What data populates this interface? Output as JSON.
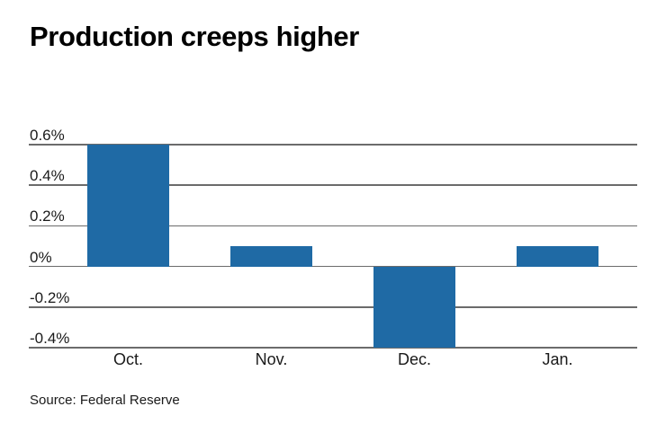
{
  "colors": {
    "bar": "#1f6aa5",
    "gridline": "#6b6b6b",
    "title_text": "#000000",
    "label_text": "#1a1a1a",
    "background": "#ffffff"
  },
  "chart_data": {
    "type": "bar",
    "title": "Production creeps higher",
    "categories": [
      "Oct.",
      "Nov.",
      "Dec.",
      "Jan."
    ],
    "values": [
      0.6,
      0.1,
      -0.4,
      0.1
    ],
    "unit": "%",
    "xlabel": "",
    "ylabel": "",
    "ylim": [
      -0.4,
      0.6
    ],
    "yticks": [
      0.6,
      0.4,
      0.2,
      0,
      -0.2,
      -0.4
    ],
    "ytick_labels": [
      "0.6%",
      "0.4%",
      "0.2%",
      "0%",
      "-0.2%",
      "-0.4%"
    ],
    "grid": true,
    "legend": "none",
    "source": "Source: Federal Reserve"
  }
}
